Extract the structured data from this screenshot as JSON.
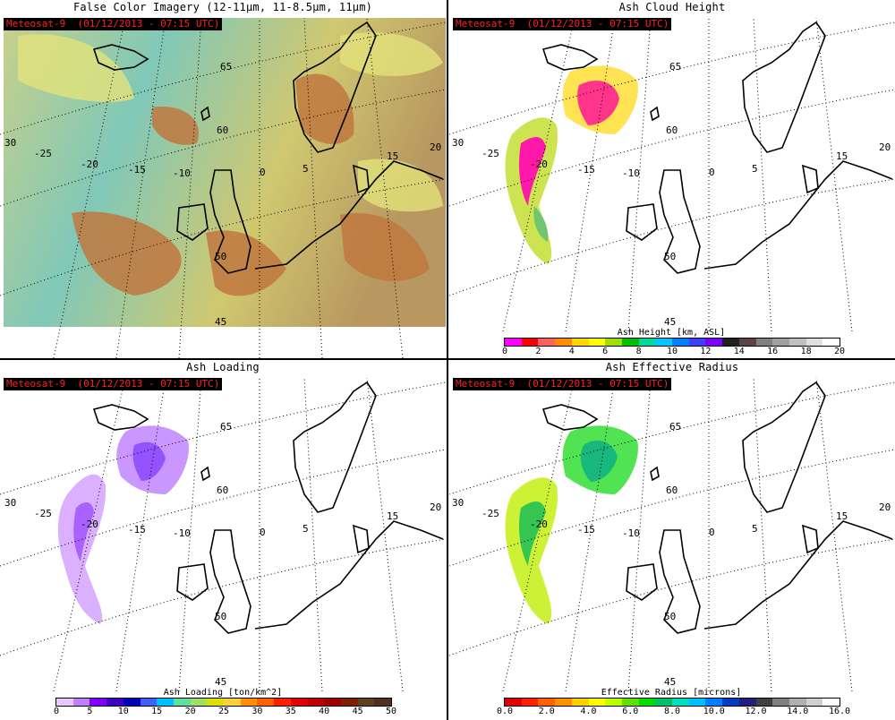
{
  "panels": [
    {
      "title": "False Color Imagery (12-11μm, 11-8.5μm, 11μm)",
      "satellite_label": "Meteosat-9  (01/12/2013 - 07:15 UTC)",
      "type": "false-color"
    },
    {
      "title": "Ash Cloud Height",
      "satellite_label": "Meteosat-9  (01/12/2013 - 07:15 UTC)",
      "type": "ash-height",
      "colorbar": {
        "title": "Ash Height [km, ASL]",
        "ticks": [
          "0",
          "2",
          "4",
          "6",
          "8",
          "10",
          "12",
          "14",
          "16",
          "18",
          "20"
        ],
        "colors": [
          "#ff00ff",
          "#ff0000",
          "#ff6060",
          "#ff8c00",
          "#ffd700",
          "#ffff00",
          "#a0e000",
          "#00c000",
          "#00d8a0",
          "#00c8ff",
          "#0080ff",
          "#4040ff",
          "#8000ff",
          "#202020",
          "#604040",
          "#808080",
          "#a0a0a0",
          "#c0c0c0",
          "#e0e0e0",
          "#ffffff"
        ]
      }
    },
    {
      "title": "Ash Loading",
      "satellite_label": "Meteosat-9  (01/12/2013 - 07:15 UTC)",
      "type": "ash-loading",
      "colorbar": {
        "title": "Ash Loading [ton/km^2]",
        "ticks": [
          "0",
          "5",
          "10",
          "15",
          "20",
          "25",
          "30",
          "35",
          "40",
          "45",
          "50"
        ],
        "colors": [
          "#e8c8ff",
          "#c080ff",
          "#8000ff",
          "#4000c0",
          "#0000c0",
          "#4060ff",
          "#00c0ff",
          "#60e0a0",
          "#a0e060",
          "#e0e000",
          "#ffd040",
          "#ff9000",
          "#ff6000",
          "#ff2000",
          "#e00000",
          "#c00000",
          "#a00000",
          "#802000",
          "#604020",
          "#503020"
        ]
      }
    },
    {
      "title": "Ash Effective Radius",
      "satellite_label": "Meteosat-9  (01/12/2013 - 07:15 UTC)",
      "type": "ash-radius",
      "colorbar": {
        "title": "Effective Radius [microns]",
        "ticks": [
          "0.0",
          "2.0",
          "4.0",
          "6.0",
          "8.0",
          "10.0",
          "12.0",
          "14.0",
          "16.0"
        ],
        "colors": [
          "#e00000",
          "#ff2000",
          "#ff6000",
          "#ff9000",
          "#ffd000",
          "#ffff00",
          "#c0ff00",
          "#60e000",
          "#00e000",
          "#00c060",
          "#00e0c0",
          "#00c0ff",
          "#0080ff",
          "#0040c0",
          "#202080",
          "#404040",
          "#808080",
          "#b0b0b0",
          "#d0d0d0",
          "#ffffff"
        ]
      }
    }
  ],
  "map_labels": {
    "lon": [
      "-25",
      "-20",
      "-15",
      "-10",
      "0",
      "5",
      "15",
      "20"
    ],
    "lon_edge": "30",
    "lat": [
      "65",
      "60",
      "50",
      "45"
    ],
    "colors": {
      "coast": "#000000",
      "false_color_base": "#7fbfb0",
      "false_color_ash": "#c87838",
      "false_color_cloud": "#dde07a"
    }
  }
}
